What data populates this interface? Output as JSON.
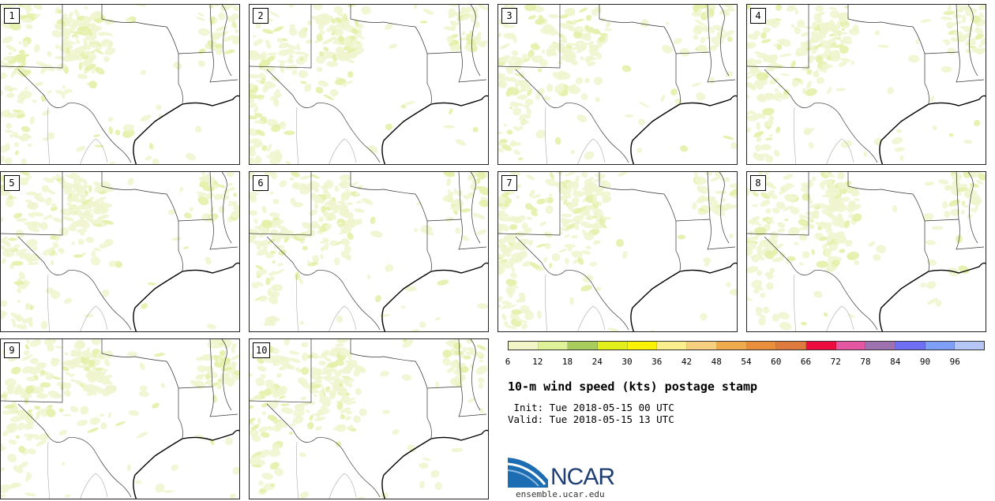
{
  "panels": [
    {
      "label": "1"
    },
    {
      "label": "2"
    },
    {
      "label": "3"
    },
    {
      "label": "4"
    },
    {
      "label": "5"
    },
    {
      "label": "6"
    },
    {
      "label": "7"
    },
    {
      "label": "8"
    },
    {
      "label": "9"
    },
    {
      "label": "10"
    }
  ],
  "colorbar": {
    "colors": [
      "#f1f5c8",
      "#dff297",
      "#a8cd5c",
      "#e3ef1a",
      "#fcf205",
      "#fbee8c",
      "#f6d07f",
      "#efaa4b",
      "#e98f3c",
      "#df7a3e",
      "#ee0c3f",
      "#e456a1",
      "#9e72ae",
      "#6f6ff3",
      "#7f9ef6",
      "#b3c6f6"
    ],
    "ticks": [
      "6",
      "12",
      "18",
      "24",
      "30",
      "36",
      "42",
      "48",
      "54",
      "60",
      "66",
      "72",
      "78",
      "84",
      "90",
      "96"
    ]
  },
  "title": "10-m wind speed (kts) postage stamp",
  "init_line": " Init: Tue 2018-05-15 00 UTC",
  "valid_line": "Valid: Tue 2018-05-15 13 UTC",
  "logo": {
    "text": "NCAR",
    "color": "#1f3f74",
    "swoosh_color": "#1d6db3"
  },
  "site": "ensemble.ucar.edu"
}
